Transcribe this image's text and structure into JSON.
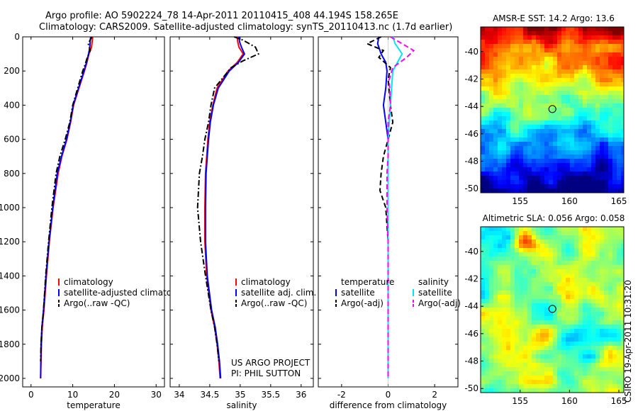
{
  "header": {
    "line1": "Argo profile: AO 5902224_78 14-Apr-2011 20110415_408 44.194S 158.265E",
    "line2": "Climatology: CARS2009. Satellite-adjusted climatology: synTS_20110413.nc (1.7d earlier)"
  },
  "footer_credit": "CSIRO 19-Apr-2011 10:31:20",
  "project": {
    "line1": "US ARGO PROJECT",
    "line2": "PI: PHIL SUTTON"
  },
  "colors": {
    "climatology": "#ff0000",
    "satellite": "#0000ff",
    "argo": "#000000",
    "sal_satellite": "#00e5ee",
    "sal_argo": "#ff00ff"
  },
  "chart_data": [
    {
      "id": "temperature",
      "type": "line",
      "xlabel": "temperature",
      "xlim": [
        -2,
        32
      ],
      "ylim": [
        2050,
        0
      ],
      "xticks": [
        0,
        10,
        20,
        30
      ],
      "yticks": [
        0,
        200,
        400,
        600,
        800,
        1000,
        1200,
        1400,
        1600,
        1800,
        2000
      ],
      "legend": [
        "climatology",
        "satellite-adjusted climatology",
        "Argo(..raw -QC)"
      ],
      "legend_placement": "lower-left",
      "series": [
        {
          "name": "climatology",
          "color": "#ff0000",
          "dash": "solid",
          "x": [
            14.8,
            14.7,
            14.5,
            13.9,
            13.4,
            12.8,
            11.5,
            10.2,
            9.5,
            8.6,
            7.4,
            6.5,
            5.3,
            4.4,
            3.7,
            3.1,
            2.7,
            2.5,
            2.4,
            2.3
          ],
          "y": [
            0,
            20,
            60,
            100,
            150,
            200,
            300,
            400,
            500,
            600,
            700,
            800,
            1000,
            1200,
            1400,
            1600,
            1700,
            1800,
            1900,
            2000
          ]
        },
        {
          "name": "satellite-adjusted climatology",
          "color": "#0000ff",
          "dash": "solid",
          "x": [
            14.3,
            14.2,
            14.1,
            13.8,
            13.3,
            12.7,
            11.4,
            10.1,
            9.4,
            8.5,
            7.3,
            6.3,
            5.2,
            4.3,
            3.6,
            3.0,
            2.6,
            2.4,
            2.35,
            2.3
          ],
          "y": [
            0,
            20,
            60,
            100,
            150,
            200,
            300,
            400,
            500,
            600,
            700,
            800,
            1000,
            1200,
            1400,
            1600,
            1700,
            1800,
            1900,
            2000
          ]
        },
        {
          "name": "Argo(..raw -QC)",
          "color": "#000000",
          "dash": "dash-dot",
          "x": [
            14.6,
            13.7,
            14.2,
            13.5,
            13.0,
            12.4,
            11.2,
            10.0,
            9.3,
            8.2,
            6.9,
            6.0,
            5.0,
            4.2,
            3.5,
            3.0,
            2.6,
            2.4,
            2.3
          ],
          "y": [
            0,
            40,
            80,
            120,
            160,
            200,
            300,
            400,
            500,
            600,
            700,
            800,
            1000,
            1200,
            1400,
            1600,
            1700,
            1800,
            1900
          ]
        }
      ]
    },
    {
      "id": "salinity",
      "type": "line",
      "xlabel": "salinity",
      "xlim": [
        33.85,
        36.2
      ],
      "ylim": [
        2050,
        0
      ],
      "xticks": [
        34,
        34.5,
        35,
        35.5,
        36
      ],
      "legend": [
        "climatology",
        "satellite adj. clim.",
        "Argo(..raw -QC)"
      ],
      "legend_placement": "lower-right",
      "series": [
        {
          "name": "climatology",
          "color": "#ff0000",
          "dash": "solid",
          "x": [
            34.95,
            34.96,
            34.98,
            35.05,
            34.95,
            34.8,
            34.62,
            34.55,
            34.5,
            34.47,
            34.45,
            34.43,
            34.42,
            34.42,
            34.45,
            34.52,
            34.58,
            34.62,
            34.65,
            34.67
          ],
          "y": [
            0,
            30,
            60,
            100,
            150,
            200,
            300,
            400,
            500,
            600,
            700,
            800,
            1000,
            1200,
            1400,
            1600,
            1700,
            1800,
            1900,
            2000
          ]
        },
        {
          "name": "satellite adj. clim.",
          "color": "#0000ff",
          "dash": "solid",
          "x": [
            34.98,
            34.99,
            35.02,
            35.07,
            34.97,
            34.82,
            34.64,
            34.56,
            34.51,
            34.48,
            34.46,
            34.44,
            34.43,
            34.43,
            34.46,
            34.53,
            34.59,
            34.63,
            34.66,
            34.68
          ],
          "y": [
            0,
            30,
            60,
            100,
            150,
            200,
            300,
            400,
            500,
            600,
            700,
            800,
            1000,
            1200,
            1400,
            1600,
            1700,
            1800,
            1900,
            2000
          ]
        },
        {
          "name": "Argo(..raw -QC)",
          "color": "#000000",
          "dash": "dash-dot",
          "x": [
            34.9,
            35.05,
            35.25,
            35.3,
            35.05,
            34.85,
            34.58,
            34.52,
            34.48,
            34.42,
            34.38,
            34.33,
            34.3,
            34.35,
            34.43,
            34.52,
            34.58,
            34.62,
            34.65
          ],
          "y": [
            0,
            20,
            60,
            100,
            140,
            180,
            300,
            400,
            500,
            600,
            700,
            800,
            1000,
            1200,
            1400,
            1600,
            1700,
            1800,
            1900
          ]
        }
      ]
    },
    {
      "id": "difference",
      "type": "line",
      "xlabel": "difference from climatology",
      "xlim": [
        -3,
        3
      ],
      "ylim": [
        2050,
        0
      ],
      "xticks": [
        -2,
        0,
        2
      ],
      "legend_left": [
        "temperature",
        "satellite",
        "Argo(-adj)"
      ],
      "legend_right": [
        "salinity",
        "satellite",
        "Argo(-adj)"
      ],
      "legend_placement": "lower-center",
      "series": [
        {
          "name": "satellite",
          "group": "temperature",
          "color": "#0000ff",
          "dash": "solid",
          "x": [
            -0.4,
            -0.45,
            -0.3,
            -0.1,
            -0.05,
            -0.1,
            -0.2,
            -0.1,
            0,
            0,
            0,
            0,
            0,
            0,
            0,
            0,
            0,
            0,
            0
          ],
          "y": [
            0,
            40,
            100,
            150,
            200,
            300,
            400,
            500,
            600,
            700,
            800,
            1000,
            1200,
            1400,
            1600,
            1700,
            1800,
            1900,
            2000
          ]
        },
        {
          "name": "Argo(-adj)",
          "group": "temperature",
          "color": "#000000",
          "dash": "dash",
          "x": [
            -0.3,
            -0.9,
            -0.2,
            -0.4,
            0.1,
            0,
            0.1,
            0.2,
            0,
            -0.2,
            -0.3,
            -0.35,
            -0.1,
            0,
            0,
            0,
            0,
            0,
            0
          ],
          "y": [
            0,
            40,
            80,
            120,
            180,
            250,
            400,
            500,
            600,
            700,
            800,
            900,
            1000,
            1200,
            1400,
            1600,
            1700,
            1800,
            1900
          ]
        },
        {
          "name": "satellite",
          "group": "salinity",
          "color": "#00e5ee",
          "dash": "solid",
          "x": [
            0.2,
            0.3,
            0.6,
            0.4,
            0.2,
            0.15,
            0.1,
            0.05,
            0,
            0,
            0,
            0,
            0,
            0,
            0,
            0,
            0,
            0,
            0
          ],
          "y": [
            0,
            40,
            100,
            150,
            200,
            300,
            400,
            500,
            600,
            700,
            800,
            1000,
            1200,
            1400,
            1600,
            1700,
            1800,
            1900,
            2000
          ]
        },
        {
          "name": "Argo(-adj)",
          "group": "salinity",
          "color": "#ff00ff",
          "dash": "dash",
          "x": [
            0.1,
            0.6,
            1.1,
            0.8,
            0.2,
            0.05,
            0.1,
            0,
            0,
            0,
            -0.05,
            -0.05,
            0,
            0,
            0,
            0,
            0,
            0,
            0
          ],
          "y": [
            0,
            40,
            80,
            120,
            180,
            250,
            400,
            500,
            600,
            700,
            800,
            1000,
            1200,
            1400,
            1600,
            1700,
            1800,
            1900,
            2000
          ]
        }
      ]
    }
  ],
  "maps": [
    {
      "id": "sst",
      "type": "heatmap",
      "title": "AMSR-E SST: 14.2 Argo: 13.6",
      "xlim": [
        151,
        165.5
      ],
      "ylim": [
        -50.3,
        -38.2
      ],
      "xticks": [
        155,
        160,
        165
      ],
      "yticks": [
        -40,
        -42,
        -44,
        -46,
        -48,
        -50
      ],
      "marker": {
        "lon": 158.265,
        "lat": -44.194
      }
    },
    {
      "id": "sla",
      "type": "heatmap",
      "title": "Altimetric SLA: 0.056 Argo: 0.058",
      "xlim": [
        151,
        165.5
      ],
      "ylim": [
        -50.3,
        -38.2
      ],
      "xticks": [
        155,
        160,
        165
      ],
      "yticks": [
        -40,
        -42,
        -44,
        -46,
        -48,
        -50
      ],
      "marker": {
        "lon": 158.265,
        "lat": -44.194
      }
    }
  ]
}
